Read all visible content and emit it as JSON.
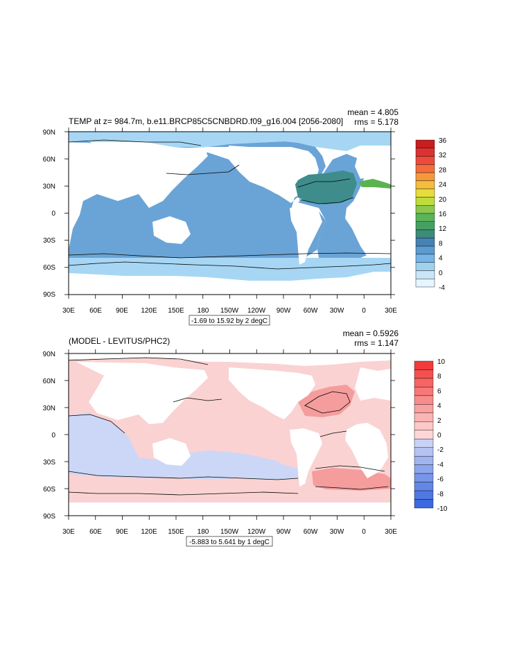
{
  "chart_data": [
    {
      "type": "heatmap",
      "title": "TEMP at z= 984.7m, b.e11.BRCP85C5CNBDRD.f09_g16.004 [2056-2080]",
      "stats": [
        "mean = 4.805",
        "rms = 5.178"
      ],
      "contour_info": "-1.69 to 15.92 by 2 degC",
      "x_tick_labels": [
        "30E",
        "60E",
        "90E",
        "120E",
        "150E",
        "180",
        "150W",
        "120W",
        "90W",
        "60W",
        "30W",
        "0",
        "30E"
      ],
      "y_tick_labels": [
        "90N",
        "60N",
        "30N",
        "0",
        "30S",
        "60S",
        "90S"
      ],
      "xlim": [
        30,
        390
      ],
      "ylim": [
        -90,
        90
      ],
      "colorbar": {
        "levels": [
          "36",
          "32",
          "28",
          "24",
          "20",
          "16",
          "12",
          "8",
          "4",
          "0",
          "-4"
        ],
        "colors": [
          "#c81e1e",
          "#dc3232",
          "#ee4a3c",
          "#f46d3c",
          "#f59a3c",
          "#f5bd3c",
          "#e6dc3c",
          "#bedc3c",
          "#8cc850",
          "#5ab45a",
          "#46a064",
          "#3c8c78",
          "#4682b4",
          "#5a9bd2",
          "#78b4e6",
          "#a0d2f0",
          "#c8e6f8",
          "#e6f5ff"
        ]
      },
      "regions": [
        {
          "name": "ocean-mid",
          "fill": "#6aa4d6"
        },
        {
          "name": "southern-ocean",
          "fill": "#a6d6f4"
        },
        {
          "name": "arctic",
          "fill": "#a6d6f4"
        },
        {
          "name": "north-atlantic-warm",
          "fill": "#3e8d8c"
        },
        {
          "name": "mediterranean",
          "fill": "#5ab34f"
        }
      ]
    },
    {
      "type": "heatmap",
      "title": "(MODEL - LEVITUS/PHC2)",
      "stats": [
        "mean = 0.5926",
        "rms = 1.147"
      ],
      "contour_info": "-5.883 to 5.641 by 1 degC",
      "x_tick_labels": [
        "30E",
        "60E",
        "90E",
        "120E",
        "150E",
        "180",
        "150W",
        "120W",
        "90W",
        "60W",
        "30W",
        "0",
        "30E"
      ],
      "y_tick_labels": [
        "90N",
        "60N",
        "30N",
        "0",
        "30S",
        "60S",
        "90S"
      ],
      "xlim": [
        30,
        390
      ],
      "ylim": [
        -90,
        90
      ],
      "colorbar": {
        "levels": [
          "10",
          "8",
          "6",
          "4",
          "2",
          "0",
          "-2",
          "-4",
          "-6",
          "-8",
          "-10"
        ],
        "colors": [
          "#f23c3c",
          "#f55050",
          "#f66464",
          "#f77878",
          "#f88c8c",
          "#f9a0a0",
          "#fab4b4",
          "#fcc8c8",
          "#fdd6d6",
          "#c8d2f5",
          "#b4c3f2",
          "#a0b4ef",
          "#8ca5ec",
          "#7896e9",
          "#6487e6",
          "#5078e3",
          "#3c69e0"
        ]
      },
      "regions": [
        {
          "name": "positive-bias",
          "fill": "#fad2d2"
        },
        {
          "name": "negative-bias",
          "fill": "#ccd7f7"
        },
        {
          "name": "strong-positive",
          "fill": "#f59c9c"
        }
      ]
    }
  ]
}
